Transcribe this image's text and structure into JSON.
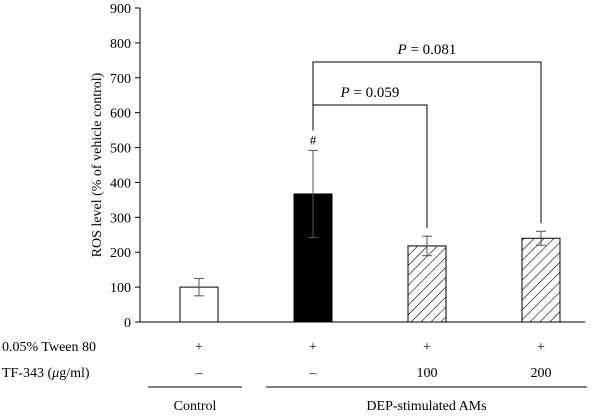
{
  "chart_data": {
    "type": "bar",
    "ylabel": "ROS level (% of vehicle control)",
    "ylim": [
      0,
      900
    ],
    "y_ticks": [
      0,
      100,
      200,
      300,
      400,
      500,
      600,
      700,
      800,
      900
    ],
    "grid": false,
    "bars": [
      {
        "value": 100,
        "error": 25,
        "fill": "white",
        "marker": ""
      },
      {
        "value": 367,
        "error": 125,
        "fill": "black",
        "marker": "#"
      },
      {
        "value": 218,
        "error": 28,
        "fill": "hatched",
        "marker": ""
      },
      {
        "value": 240,
        "error": 20,
        "fill": "hatched",
        "marker": ""
      }
    ],
    "comparisons": [
      {
        "label_prefix": "P",
        "label_value": "= 0.059",
        "from_bar": 2,
        "to_bar": 3
      },
      {
        "label_prefix": "P",
        "label_value": "= 0.081",
        "from_bar": 2,
        "to_bar": 4
      }
    ],
    "table": {
      "rows": [
        {
          "label": "0.05% Tween 80",
          "values": [
            "+",
            "+",
            "+",
            "+"
          ]
        },
        {
          "label_prefix": "TF-343 (",
          "label_unit_mu": "μ",
          "label_suffix": "g/ml)",
          "values": [
            "–",
            "–",
            "100",
            "200"
          ]
        }
      ],
      "groups": [
        {
          "label": "Control",
          "bars": [
            1
          ]
        },
        {
          "label": "DEP-stimulated AMs",
          "bars": [
            2,
            3,
            4
          ]
        }
      ]
    }
  }
}
